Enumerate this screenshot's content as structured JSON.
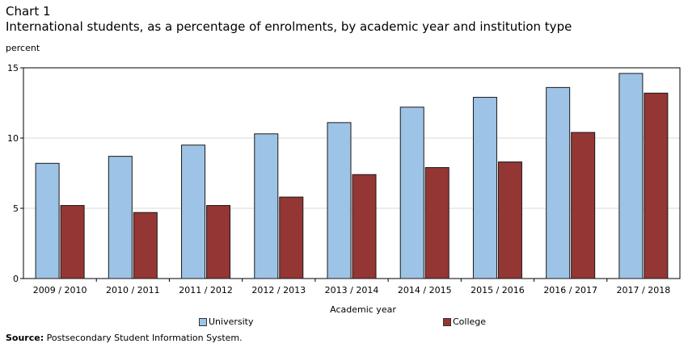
{
  "chart_label": "Chart 1",
  "chart_title": "International students, as a percentage of enrolments, by academic year and institution type",
  "unit_label": "percent",
  "source_prefix": "Source:",
  "source_text": "Postsecondary Student Information System.",
  "colors": {
    "university": "#9dc3e6",
    "college": "#943634"
  },
  "chart_data": {
    "type": "bar",
    "title": "International students, as a percentage of enrolments, by academic year and institution type",
    "xlabel": "Academic year",
    "ylabel": "percent",
    "ylim": [
      0,
      15
    ],
    "yticks": [
      0,
      5,
      10,
      15
    ],
    "grid": true,
    "legend_position": "bottom",
    "categories": [
      "2009 / 2010",
      "2010 / 2011",
      "2011 / 2012",
      "2012 / 2013",
      "2013 / 2014",
      "2014 / 2015",
      "2015 / 2016",
      "2016 / 2017",
      "2017 / 2018"
    ],
    "series": [
      {
        "name": "University",
        "values": [
          8.2,
          8.7,
          9.5,
          10.3,
          11.1,
          12.2,
          12.9,
          13.6,
          14.6
        ]
      },
      {
        "name": "College",
        "values": [
          5.2,
          4.7,
          5.2,
          5.8,
          7.4,
          7.9,
          8.3,
          10.4,
          13.2
        ]
      }
    ]
  }
}
